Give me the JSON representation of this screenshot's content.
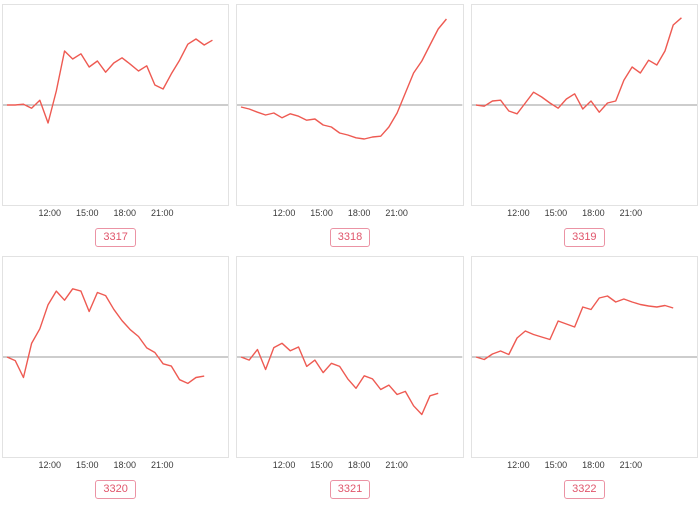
{
  "chart_style": {
    "line_color": "#ee5a52",
    "baseline_color": "#9b9b9b",
    "frame_color": "#e2e2e2",
    "badge_text_color": "#e0566c",
    "badge_border_color": "#eb93a4",
    "tick_color": "#3a3a3a"
  },
  "chart_data": [
    {
      "type": "line",
      "title": "3317",
      "x_ticks": [
        "12:00",
        "15:00",
        "18:00",
        "21:00"
      ],
      "ylim": [
        -2.5,
        2.5
      ],
      "baseline": 0,
      "grid": "horizontal-zero-line-only",
      "legend": "none",
      "values": [
        0,
        0,
        0.02,
        -0.08,
        0.12,
        -0.45,
        0.35,
        1.35,
        1.15,
        1.28,
        0.95,
        1.1,
        0.82,
        1.05,
        1.18,
        1.02,
        0.85,
        0.98,
        0.5,
        0.4,
        0.78,
        1.12,
        1.52,
        1.65,
        1.5,
        1.62
      ]
    },
    {
      "type": "line",
      "title": "3318",
      "x_ticks": [
        "12:00",
        "15:00",
        "18:00",
        "21:00"
      ],
      "ylim": [
        -2.5,
        2.5
      ],
      "baseline": 0,
      "grid": "horizontal-zero-line-only",
      "legend": "none",
      "values": [
        -0.05,
        -0.1,
        -0.18,
        -0.25,
        -0.2,
        -0.32,
        -0.22,
        -0.28,
        -0.38,
        -0.35,
        -0.5,
        -0.55,
        -0.7,
        -0.75,
        -0.82,
        -0.85,
        -0.8,
        -0.78,
        -0.55,
        -0.2,
        0.3,
        0.8,
        1.1,
        1.5,
        1.9,
        2.15
      ]
    },
    {
      "type": "line",
      "title": "3319",
      "x_ticks": [
        "12:00",
        "15:00",
        "18:00",
        "21:00"
      ],
      "ylim": [
        -2.5,
        2.5
      ],
      "baseline": 0,
      "grid": "horizontal-zero-line-only",
      "legend": "none",
      "values": [
        0,
        -0.03,
        0.1,
        0.12,
        -0.15,
        -0.22,
        0.05,
        0.32,
        0.2,
        0.05,
        -0.08,
        0.15,
        0.28,
        -0.1,
        0.1,
        -0.18,
        0.05,
        0.1,
        0.62,
        0.95,
        0.8,
        1.12,
        1.0,
        1.35,
        2.0,
        2.18
      ]
    },
    {
      "type": "line",
      "title": "3320",
      "x_ticks": [
        "12:00",
        "15:00",
        "18:00",
        "21:00"
      ],
      "ylim": [
        -2.2,
        2.2
      ],
      "baseline": 0,
      "grid": "horizontal-zero-line-only",
      "legend": "none",
      "values": [
        0,
        -0.08,
        -0.45,
        0.3,
        0.62,
        1.15,
        1.45,
        1.25,
        1.5,
        1.45,
        1.0,
        1.42,
        1.35,
        1.05,
        0.8,
        0.6,
        0.45,
        0.2,
        0.1,
        -0.15,
        -0.2,
        -0.5,
        -0.58,
        -0.45,
        -0.42
      ]
    },
    {
      "type": "line",
      "title": "3321",
      "x_ticks": [
        "12:00",
        "15:00",
        "18:00",
        "21:00"
      ],
      "ylim": [
        -1.6,
        1.6
      ],
      "baseline": 0,
      "grid": "horizontal-zero-line-only",
      "legend": "none",
      "values": [
        0,
        -0.05,
        0.12,
        -0.2,
        0.15,
        0.22,
        0.1,
        0.16,
        -0.15,
        -0.05,
        -0.25,
        -0.1,
        -0.15,
        -0.35,
        -0.5,
        -0.3,
        -0.35,
        -0.52,
        -0.45,
        -0.6,
        -0.55,
        -0.78,
        -0.92,
        -0.62,
        -0.58
      ]
    },
    {
      "type": "line",
      "title": "3322",
      "x_ticks": [
        "12:00",
        "15:00",
        "18:00",
        "21:00"
      ],
      "ylim": [
        -2.0,
        2.0
      ],
      "baseline": 0,
      "grid": "horizontal-zero-line-only",
      "legend": "none",
      "values": [
        0,
        -0.05,
        0.06,
        0.12,
        0.05,
        0.38,
        0.52,
        0.45,
        0.4,
        0.35,
        0.72,
        0.66,
        0.6,
        1.0,
        0.95,
        1.18,
        1.22,
        1.1,
        1.16,
        1.1,
        1.05,
        1.02,
        1.0,
        1.03,
        0.98
      ]
    }
  ]
}
